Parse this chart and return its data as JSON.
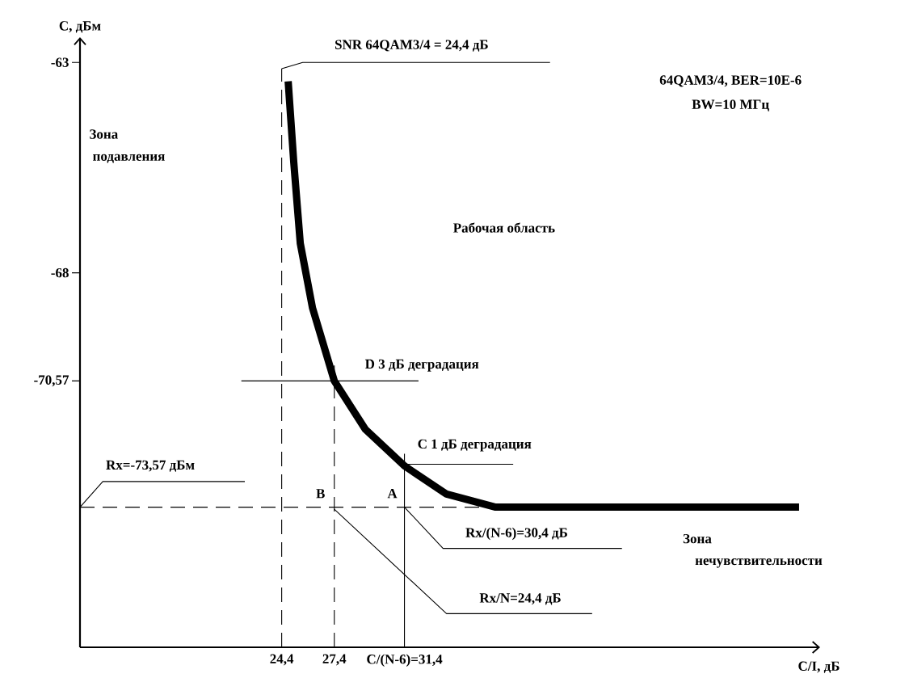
{
  "chart_data": {
    "type": "line",
    "xlabel": "C/I, дБ",
    "ylabel": "C, дБм",
    "xlim": [
      12.9,
      55.1
    ],
    "ylim": [
      -76.9,
      -62.4
    ],
    "xticks": [
      {
        "value": 24.4,
        "label": "24,4"
      },
      {
        "value": 27.4,
        "label": "27,4"
      },
      {
        "value": 31.4,
        "label": "C/(N-6)=31,4"
      }
    ],
    "yticks": [
      -63,
      -68,
      {
        "value": -70.57,
        "label": "-70,57"
      }
    ],
    "grid": false,
    "marker": "none",
    "series": [
      {
        "color": "#000000",
        "line_style": "solid",
        "x": [
          24.77,
          25.09,
          25.46,
          26.16,
          27.4,
          29.17,
          31.4,
          33.8,
          36.6,
          53.9
        ],
        "values": [
          -63.45,
          -65.38,
          -67.3,
          -68.84,
          -70.57,
          -71.72,
          -72.59,
          -73.26,
          -73.57,
          -73.57
        ]
      },
      {
        "color": "#000000",
        "line_style": "solid",
        "x": [
          24.4,
          25.6,
          39.7
        ],
        "values": [
          -63.15,
          -63,
          -63
        ]
      },
      {
        "color": "#000000",
        "line_style": "dashed",
        "x": [
          24.4,
          24.4
        ],
        "values": [
          -76.9,
          -63.15
        ]
      },
      {
        "color": "#000000",
        "line_style": "dashed",
        "x": [
          27.4,
          27.4
        ],
        "values": [
          -76.9,
          -70.2
        ]
      },
      {
        "color": "#000000",
        "line_style": "solid",
        "x": [
          31.4,
          31.4
        ],
        "values": [
          -76.9,
          -72.3
        ]
      },
      {
        "color": "#000000",
        "line_style": "solid",
        "x": [
          22.1,
          32.2
        ],
        "values": [
          -70.57,
          -70.57
        ]
      },
      {
        "color": "#000000",
        "line_style": "solid",
        "x": [
          31.4,
          37.6
        ],
        "values": [
          -72.55,
          -72.55
        ]
      },
      {
        "color": "#000000",
        "line_style": "dashed",
        "x": [
          12.9,
          36.6
        ],
        "values": [
          -73.57,
          -73.57
        ]
      },
      {
        "color": "#000000",
        "line_style": "solid",
        "x": [
          12.9,
          14.2,
          22.3
        ],
        "values": [
          -73.57,
          -72.96,
          -72.96
        ]
      },
      {
        "color": "#000000",
        "line_style": "solid",
        "x": [
          31.4,
          33.6,
          43.8
        ],
        "values": [
          -73.57,
          -74.55,
          -74.55
        ]
      },
      {
        "color": "#000000",
        "line_style": "solid",
        "x": [
          27.4,
          33.8,
          42.1
        ],
        "values": [
          -73.62,
          -76.1,
          -76.1
        ]
      }
    ],
    "annotations": [
      "SNR 64QAM3/4 = 24,4 дБ",
      "64QAM3/4, BER=10E-6",
      "BW=10 МГц",
      "Зона",
      "подавления",
      "Рабочая область",
      "D  3 дБ деградация",
      "C  1 дБ деградация",
      "Rx=-73,57 дБм",
      "B",
      "A",
      "Rx/(N-6)=30,4 дБ",
      "Rx/N=24,4 дБ",
      "Зона",
      "нечувствительности"
    ]
  }
}
